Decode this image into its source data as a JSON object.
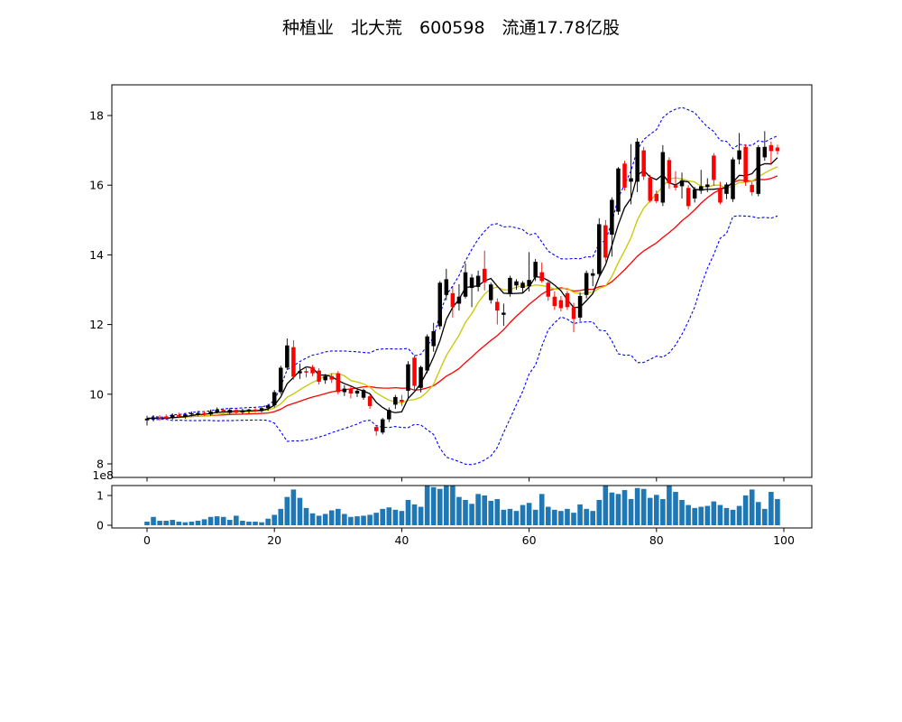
{
  "title": "种植业　北大荒　600598　流通17.78亿股",
  "chart_data": {
    "type": "candlestick",
    "title": "种植业 北大荒 600598 流通17.78亿股",
    "x_start": 0,
    "x_step": 1,
    "ohlc": {
      "open": [
        9.25,
        9.28,
        9.33,
        9.36,
        9.31,
        9.4,
        9.36,
        9.42,
        9.41,
        9.46,
        9.42,
        9.49,
        9.55,
        9.47,
        9.55,
        9.48,
        9.53,
        9.56,
        9.52,
        9.6,
        9.68,
        10.06,
        10.76,
        11.35,
        10.6,
        10.66,
        10.78,
        10.68,
        10.4,
        10.52,
        10.6,
        10.06,
        10.16,
        10.02,
        9.9,
        9.94,
        9.06,
        8.9,
        9.28,
        9.7,
        9.84,
        10.1,
        11.05,
        10.18,
        10.68,
        11.38,
        11.95,
        12.85,
        12.9,
        12.6,
        12.8,
        13.05,
        13.08,
        13.6,
        12.7,
        12.65,
        12.28,
        12.9,
        13.12,
        13.05,
        13.1,
        13.35,
        13.5,
        13.2,
        12.8,
        12.7,
        12.9,
        12.5,
        12.2,
        12.85,
        13.4,
        13.45,
        14.85,
        14.58,
        15.24,
        16.62,
        16.1,
        16.1,
        17.0,
        16.22,
        15.75,
        15.5,
        16.72,
        16.0,
        15.97,
        15.92,
        15.62,
        15.84,
        15.95,
        16.85,
        15.92,
        15.75,
        15.6,
        16.74,
        17.1,
        16.01,
        15.75,
        16.8,
        17.15,
        17.08
      ],
      "high": [
        9.38,
        9.4,
        9.4,
        9.42,
        9.45,
        9.47,
        9.46,
        9.5,
        9.52,
        9.52,
        9.56,
        9.62,
        9.6,
        9.6,
        9.6,
        9.58,
        9.58,
        9.64,
        9.66,
        9.72,
        10.12,
        10.82,
        11.6,
        11.55,
        10.88,
        10.8,
        10.84,
        10.75,
        10.58,
        10.6,
        10.66,
        10.26,
        10.22,
        10.16,
        10.16,
        10.0,
        9.1,
        9.32,
        9.62,
        9.98,
        9.98,
        10.95,
        11.12,
        10.82,
        11.72,
        12.05,
        13.25,
        13.6,
        13.1,
        13.16,
        13.75,
        13.45,
        13.55,
        14.12,
        13.2,
        12.75,
        12.6,
        13.4,
        13.3,
        13.25,
        14.08,
        13.88,
        13.78,
        13.28,
        12.95,
        12.82,
        12.96,
        12.62,
        12.92,
        13.55,
        13.6,
        15.05,
        15.0,
        15.65,
        16.52,
        16.7,
        17.18,
        17.35,
        17.1,
        16.3,
        15.85,
        17.15,
        16.8,
        16.4,
        16.36,
        16.0,
        15.95,
        16.44,
        16.2,
        16.92,
        16.1,
        16.08,
        16.8,
        17.5,
        17.18,
        16.1,
        17.15,
        17.55,
        17.25,
        17.16
      ],
      "low": [
        9.1,
        9.22,
        9.24,
        9.28,
        9.27,
        9.33,
        9.3,
        9.36,
        9.37,
        9.38,
        9.38,
        9.45,
        9.46,
        9.43,
        9.44,
        9.42,
        9.45,
        9.48,
        9.48,
        9.52,
        9.62,
        10.0,
        10.7,
        10.42,
        10.44,
        10.48,
        10.52,
        10.28,
        10.3,
        10.32,
        10.0,
        9.95,
        9.88,
        9.92,
        9.84,
        9.58,
        8.81,
        8.85,
        9.2,
        9.58,
        9.66,
        9.85,
        10.08,
        10.05,
        10.6,
        11.22,
        11.86,
        12.7,
        12.2,
        12.4,
        12.75,
        12.5,
        12.95,
        12.98,
        12.6,
        12.0,
        11.96,
        12.8,
        13.0,
        12.9,
        12.95,
        13.25,
        13.2,
        12.68,
        12.42,
        12.38,
        12.42,
        11.78,
        12.1,
        12.75,
        13.1,
        13.38,
        13.8,
        13.95,
        15.15,
        15.85,
        15.45,
        15.8,
        16.15,
        15.5,
        15.48,
        15.4,
        15.9,
        15.85,
        15.62,
        15.31,
        15.5,
        15.75,
        15.8,
        15.98,
        15.45,
        15.6,
        15.52,
        16.6,
        15.98,
        15.7,
        15.68,
        16.7,
        16.58,
        16.88
      ],
      "close": [
        9.3,
        9.33,
        9.3,
        9.31,
        9.4,
        9.36,
        9.42,
        9.45,
        9.46,
        9.42,
        9.5,
        9.55,
        9.5,
        9.55,
        9.48,
        9.53,
        9.56,
        9.52,
        9.6,
        9.68,
        10.06,
        10.76,
        11.4,
        10.5,
        10.66,
        10.62,
        10.6,
        10.36,
        10.52,
        10.42,
        10.06,
        10.16,
        10.02,
        10.1,
        10.12,
        9.66,
        8.94,
        9.28,
        9.55,
        9.92,
        9.78,
        10.86,
        10.24,
        10.78,
        11.66,
        11.81,
        13.2,
        13.3,
        12.5,
        12.8,
        13.5,
        13.35,
        13.4,
        13.21,
        13.15,
        12.4,
        12.34,
        13.34,
        13.24,
        13.2,
        13.28,
        13.8,
        13.25,
        12.8,
        12.53,
        12.47,
        12.5,
        12.16,
        12.82,
        13.48,
        13.47,
        14.88,
        13.92,
        15.58,
        16.48,
        15.93,
        16.2,
        17.25,
        16.25,
        15.55,
        15.54,
        16.95,
        16.05,
        15.93,
        16.14,
        15.4,
        15.88,
        15.97,
        16.02,
        16.15,
        15.5,
        16.02,
        16.74,
        17.0,
        16.09,
        15.8,
        17.09,
        17.1,
        16.98,
        16.98
      ]
    },
    "volume_1e8": [
      0.12,
      0.28,
      0.15,
      0.15,
      0.18,
      0.12,
      0.1,
      0.12,
      0.15,
      0.2,
      0.28,
      0.3,
      0.28,
      0.18,
      0.32,
      0.15,
      0.12,
      0.12,
      0.1,
      0.22,
      0.35,
      0.55,
      0.95,
      1.2,
      0.92,
      0.58,
      0.4,
      0.32,
      0.38,
      0.5,
      0.55,
      0.38,
      0.28,
      0.3,
      0.32,
      0.35,
      0.42,
      0.55,
      0.6,
      0.52,
      0.48,
      0.85,
      0.7,
      0.62,
      1.33,
      1.28,
      1.22,
      1.33,
      1.32,
      0.95,
      0.85,
      0.72,
      1.05,
      1.0,
      0.82,
      0.88,
      0.52,
      0.55,
      0.48,
      0.68,
      0.75,
      0.52,
      1.05,
      0.62,
      0.52,
      0.48,
      0.55,
      0.42,
      0.7,
      0.55,
      0.48,
      0.85,
      1.33,
      1.1,
      1.05,
      1.18,
      0.88,
      1.25,
      1.22,
      0.92,
      1.02,
      0.88,
      1.33,
      1.12,
      0.85,
      0.68,
      0.58,
      0.62,
      0.65,
      0.8,
      0.68,
      0.58,
      0.52,
      0.65,
      1.0,
      1.2,
      0.78,
      0.55,
      1.12,
      0.88
    ],
    "price_axis": {
      "ticks": [
        8,
        10,
        12,
        14,
        16,
        18
      ],
      "ylim": [
        7.61,
        18.88
      ]
    },
    "x_axis": {
      "ticks": [
        0,
        20,
        40,
        60,
        80,
        100
      ],
      "xlim": [
        -5.5,
        104.4
      ]
    },
    "volume_axis": {
      "ticks": [
        0,
        1
      ],
      "offset_label": "1e8",
      "ylim_1e8": [
        -0.09,
        1.42
      ]
    },
    "overlays": [
      {
        "name": "MA5",
        "color": "#000000",
        "style": "solid"
      },
      {
        "name": "MA10",
        "color": "#c8c800",
        "style": "solid"
      },
      {
        "name": "MA20",
        "color": "#ff0000",
        "style": "solid"
      },
      {
        "name": "Bollinger upper (20, 2sd)",
        "color": "#0000ff",
        "style": "dashed"
      },
      {
        "name": "Bollinger lower (20, 2sd)",
        "color": "#0000ff",
        "style": "dashed"
      }
    ],
    "colors": {
      "up": "#000000",
      "down": "#ff0000",
      "volume": "#1f77b4"
    },
    "grid": false,
    "legend": "none"
  }
}
